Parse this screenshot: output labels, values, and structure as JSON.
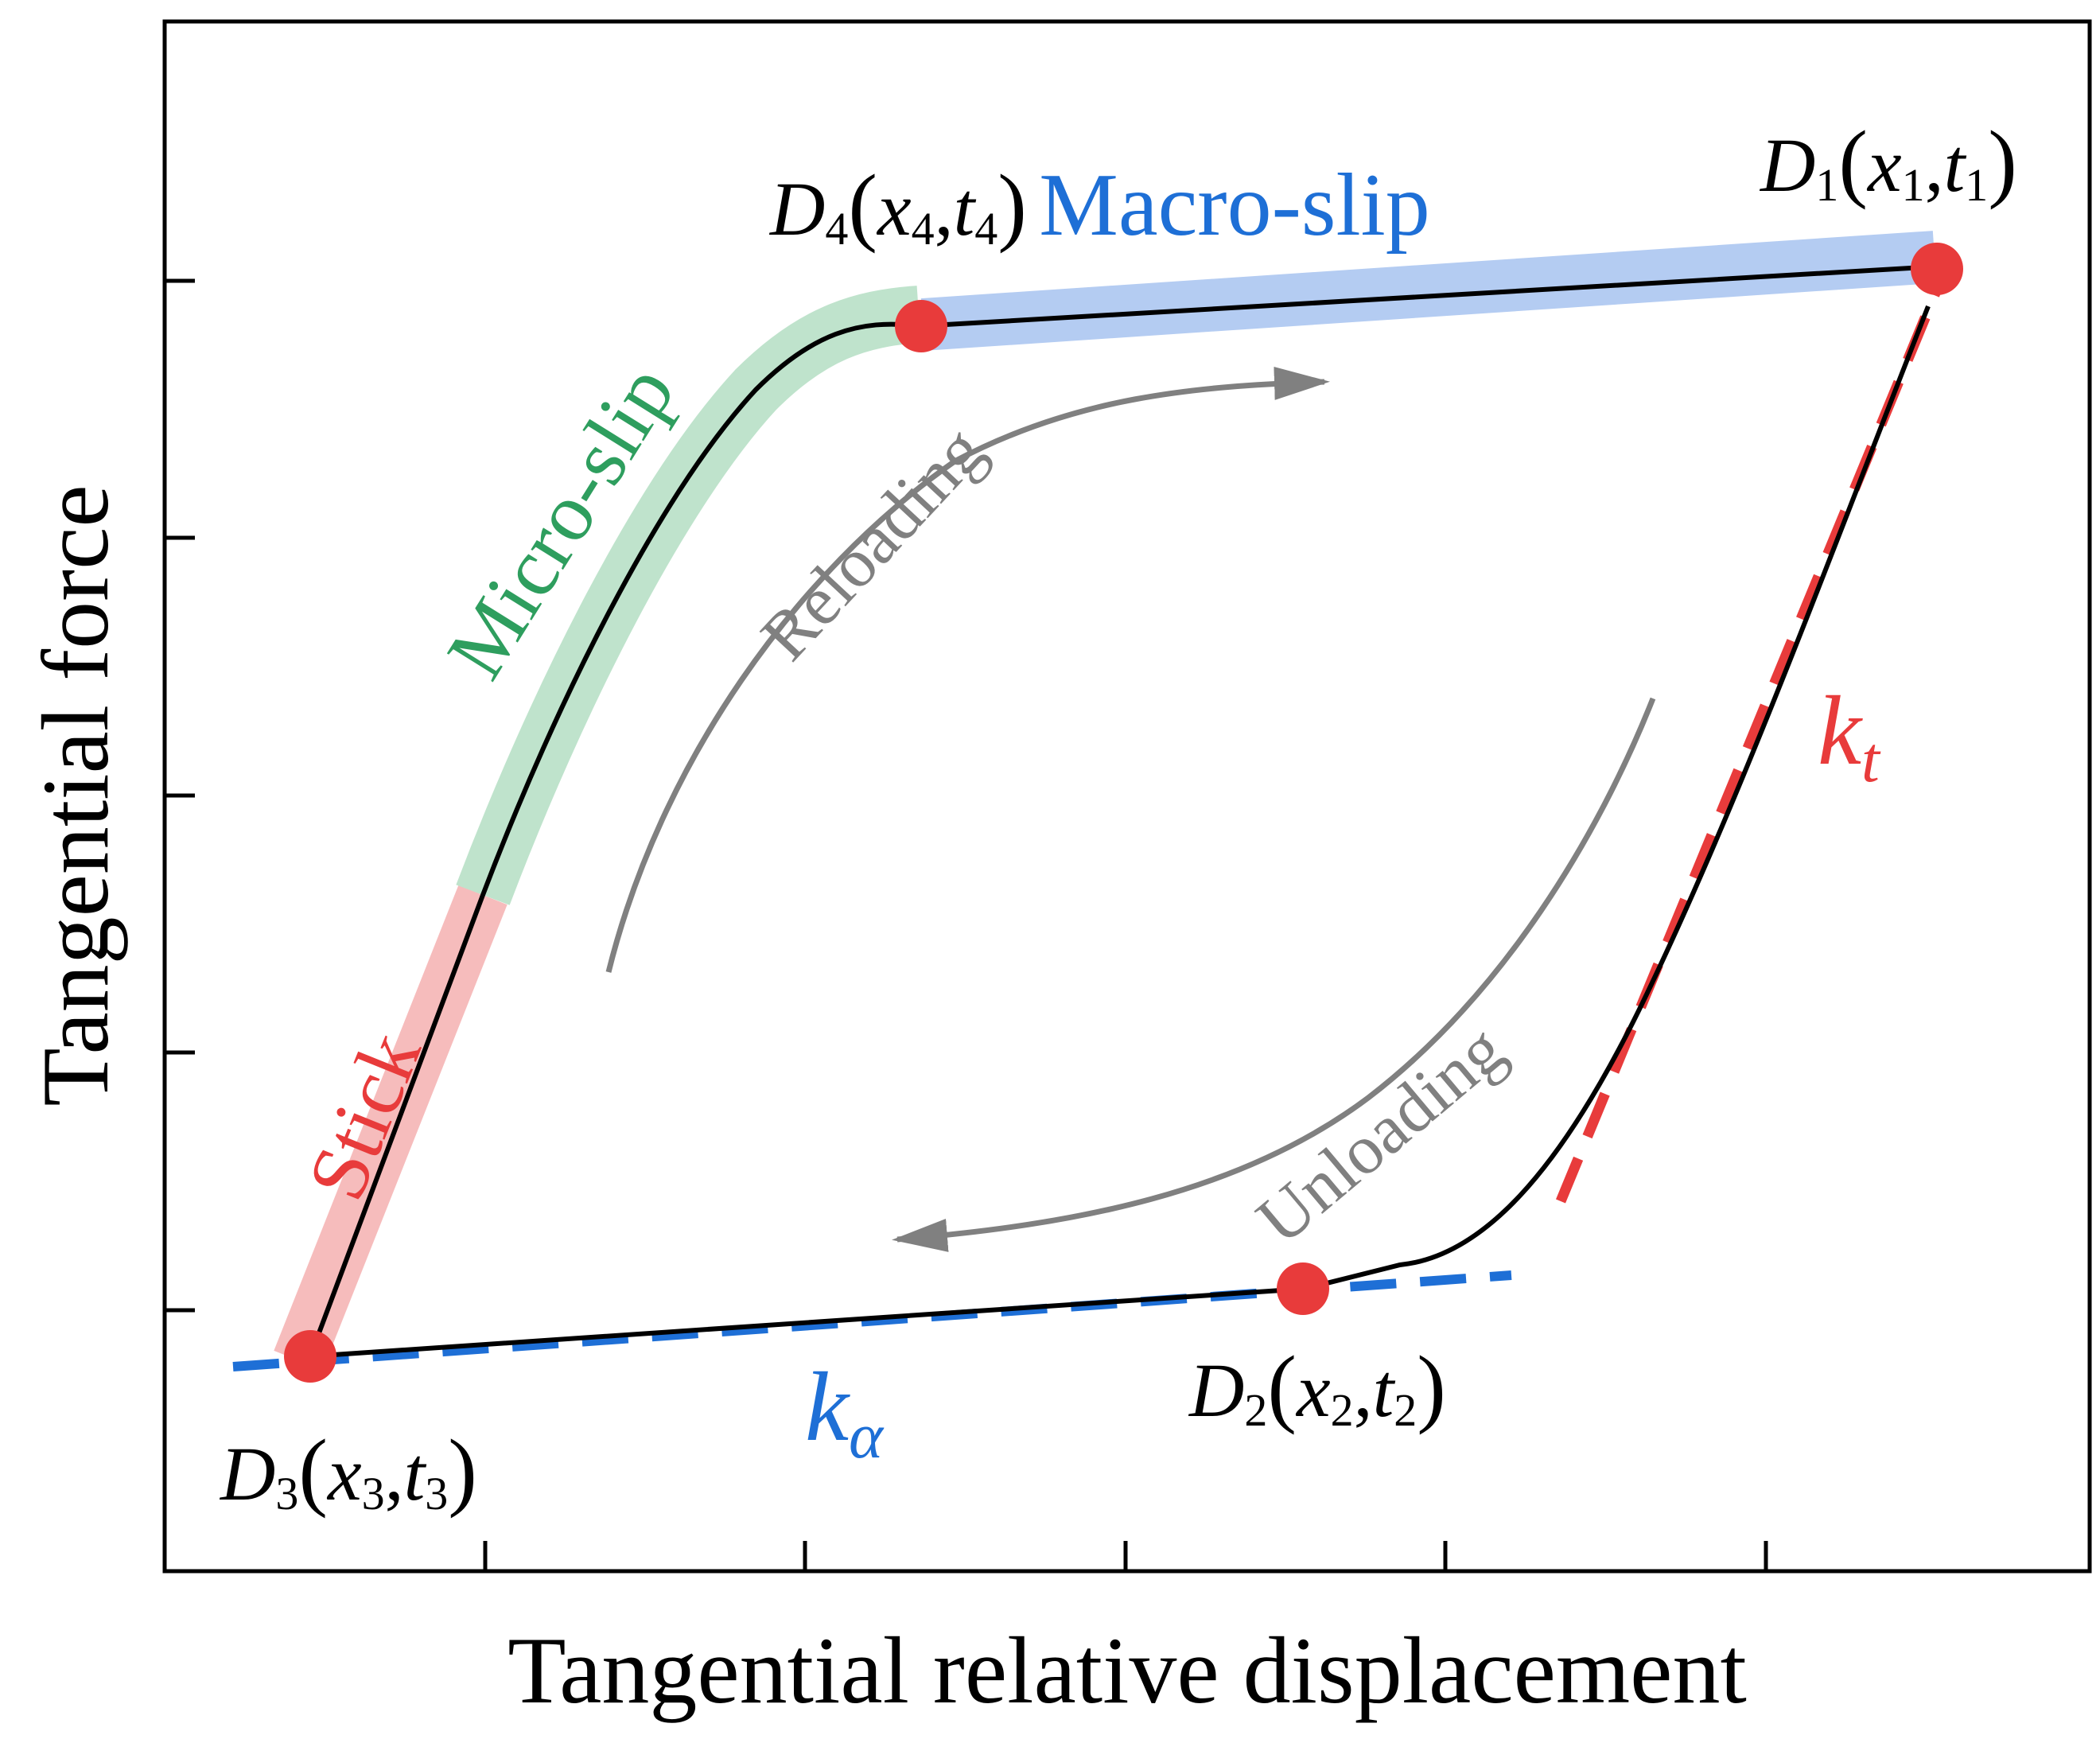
{
  "axes": {
    "xlabel": "Tangential relative displacement",
    "ylabel": "Tangential force"
  },
  "regions": {
    "stick": "Stick",
    "micro_slip": "Micro-slip",
    "macro_slip": "Macro-slip"
  },
  "arrows": {
    "reloading": "Reloading",
    "unloading": "Unloading"
  },
  "points": {
    "d1": {
      "base": "D",
      "sub": "1",
      "x": "x",
      "xsub": "1",
      "t": "t",
      "tsub": "1"
    },
    "d2": {
      "base": "D",
      "sub": "2",
      "x": "x",
      "xsub": "2",
      "t": "t",
      "tsub": "2"
    },
    "d3": {
      "base": "D",
      "sub": "3",
      "x": "x",
      "xsub": "3",
      "t": "t",
      "tsub": "3"
    },
    "d4": {
      "base": "D",
      "sub": "4",
      "x": "x",
      "xsub": "4",
      "t": "t",
      "tsub": "4"
    }
  },
  "stiffness": {
    "kt": {
      "base": "k",
      "sub": "t"
    },
    "ka": {
      "base": "k",
      "sub": "α"
    }
  },
  "colors": {
    "stick": "#e83b3b",
    "stick_band": "#f6bcbc",
    "micro_slip": "#2e9e5e",
    "micro_band": "#bfe3cc",
    "macro_slip": "#1e6fd6",
    "macro_band": "#b4ccf2",
    "arrow": "#808080",
    "point": "#e83b3b"
  }
}
